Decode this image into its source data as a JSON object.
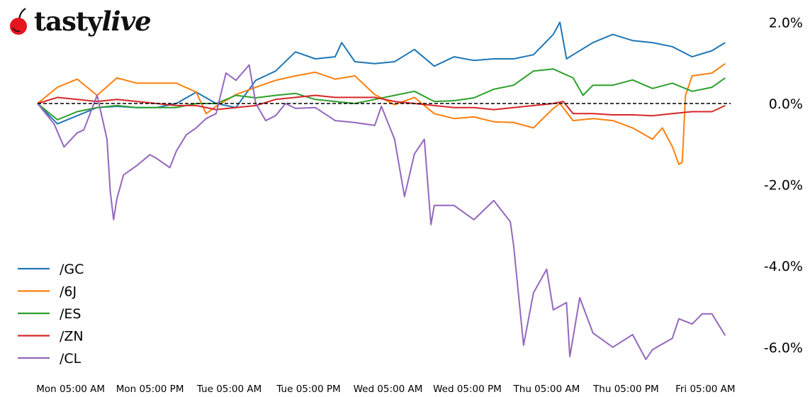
{
  "logo": {
    "text": "tastylive",
    "cherry_color": "#e4151f"
  },
  "chart_data": {
    "type": "line",
    "title": "",
    "xlabel": "",
    "ylabel": "",
    "y_unit": "%",
    "ylim": [
      -6.8,
      2.4
    ],
    "x_range": [
      "Mon 00:00",
      "Fri 08:00"
    ],
    "grid": false,
    "reference_line": {
      "value": 0.0,
      "style": "dashed",
      "color": "#000000"
    },
    "x_ticks": [
      "Mon 05:00 AM",
      "Mon 05:00 PM",
      "Tue 05:00 AM",
      "Tue 05:00 PM",
      "Wed 05:00 AM",
      "Wed 05:00 PM",
      "Thu 05:00 AM",
      "Thu 05:00 PM",
      "Fri 05:00 AM"
    ],
    "x_tick_times": [
      "Mon 05:00",
      "Mon 17:00",
      "Tue 05:00",
      "Tue 17:00",
      "Wed 05:00",
      "Wed 17:00",
      "Thu 05:00",
      "Thu 17:00",
      "Fri 05:00"
    ],
    "y_ticks": [
      {
        "value": 2,
        "label": "2.0%"
      },
      {
        "value": 0,
        "label": "0.0%"
      },
      {
        "value": -2,
        "label": "-2.0%"
      },
      {
        "value": -4,
        "label": "-4.0%"
      },
      {
        "value": -6,
        "label": "-6.0%"
      }
    ],
    "y_axis_side": "right",
    "legend_position": "bottom-left",
    "series": [
      {
        "name": "/GC",
        "color": "#1f77b4",
        "points": [
          [
            "Mon 00:00",
            0
          ],
          [
            "Mon 03:00",
            -0.5
          ],
          [
            "Mon 06:00",
            -0.3
          ],
          [
            "Mon 09:00",
            -0.1
          ],
          [
            "Mon 12:00",
            -0.07
          ],
          [
            "Mon 15:00",
            -0.1
          ],
          [
            "Mon 18:00",
            -0.1
          ],
          [
            "Mon 21:00",
            0
          ],
          [
            "Tue 00:00",
            0.28
          ],
          [
            "Tue 03:00",
            0
          ],
          [
            "Tue 06:00",
            -0.1
          ],
          [
            "Tue 09:00",
            0.57
          ],
          [
            "Tue 12:00",
            0.8
          ],
          [
            "Tue 15:00",
            1.27
          ],
          [
            "Tue 18:00",
            1.1
          ],
          [
            "Tue 21:00",
            1.15
          ],
          [
            "Tue 22:00",
            1.5
          ],
          [
            "Wed 00:00",
            1.03
          ],
          [
            "Wed 03:00",
            0.98
          ],
          [
            "Wed 06:00",
            1.03
          ],
          [
            "Wed 09:00",
            1.33
          ],
          [
            "Wed 12:00",
            0.92
          ],
          [
            "Wed 15:00",
            1.15
          ],
          [
            "Wed 18:00",
            1.06
          ],
          [
            "Wed 21:00",
            1.1
          ],
          [
            "Thu 00:00",
            1.1
          ],
          [
            "Thu 03:00",
            1.2
          ],
          [
            "Thu 06:00",
            1.7
          ],
          [
            "Thu 07:00",
            2.0
          ],
          [
            "Thu 08:00",
            1.1
          ],
          [
            "Thu 09:00",
            1.2
          ],
          [
            "Thu 12:00",
            1.5
          ],
          [
            "Thu 15:00",
            1.7
          ],
          [
            "Thu 18:00",
            1.55
          ],
          [
            "Thu 21:00",
            1.5
          ],
          [
            "Fri 00:00",
            1.4
          ],
          [
            "Fri 03:00",
            1.15
          ],
          [
            "Fri 06:00",
            1.3
          ],
          [
            "Fri 08:00",
            1.5
          ]
        ]
      },
      {
        "name": "/6J",
        "color": "#ff7f0e",
        "points": [
          [
            "Mon 00:00",
            0
          ],
          [
            "Mon 03:00",
            0.4
          ],
          [
            "Mon 06:00",
            0.6
          ],
          [
            "Mon 09:00",
            0.2
          ],
          [
            "Mon 12:00",
            0.63
          ],
          [
            "Mon 15:00",
            0.5
          ],
          [
            "Mon 18:00",
            0.5
          ],
          [
            "Mon 21:00",
            0.5
          ],
          [
            "Tue 00:00",
            0.28
          ],
          [
            "Tue 01:30",
            -0.25
          ],
          [
            "Tue 03:00",
            -0.07
          ],
          [
            "Tue 06:00",
            0.22
          ],
          [
            "Tue 09:00",
            0.4
          ],
          [
            "Tue 12:00",
            0.57
          ],
          [
            "Tue 15:00",
            0.68
          ],
          [
            "Tue 18:00",
            0.77
          ],
          [
            "Tue 21:00",
            0.6
          ],
          [
            "Wed 00:00",
            0.68
          ],
          [
            "Wed 03:00",
            0.22
          ],
          [
            "Wed 06:00",
            -0.03
          ],
          [
            "Wed 09:00",
            0.15
          ],
          [
            "Wed 12:00",
            -0.25
          ],
          [
            "Wed 15:00",
            -0.37
          ],
          [
            "Wed 18:00",
            -0.33
          ],
          [
            "Wed 21:00",
            -0.45
          ],
          [
            "Thu 00:00",
            -0.47
          ],
          [
            "Thu 03:00",
            -0.6
          ],
          [
            "Thu 06:00",
            -0.12
          ],
          [
            "Thu 07:00",
            0
          ],
          [
            "Thu 09:00",
            -0.42
          ],
          [
            "Thu 12:00",
            -0.37
          ],
          [
            "Thu 15:00",
            -0.42
          ],
          [
            "Thu 18:00",
            -0.6
          ],
          [
            "Thu 21:00",
            -0.88
          ],
          [
            "Thu 22:30",
            -0.6
          ],
          [
            "Fri 00:00",
            -1.06
          ],
          [
            "Fri 01:00",
            -1.5
          ],
          [
            "Fri 01:30",
            -1.45
          ],
          [
            "Fri 02:00",
            0.2
          ],
          [
            "Fri 03:00",
            0.68
          ],
          [
            "Fri 06:00",
            0.75
          ],
          [
            "Fri 08:00",
            0.98
          ]
        ]
      },
      {
        "name": "/ES",
        "color": "#2ca02c",
        "points": [
          [
            "Mon 00:00",
            0
          ],
          [
            "Mon 03:00",
            -0.4
          ],
          [
            "Mon 06:00",
            -0.2
          ],
          [
            "Mon 09:00",
            -0.1
          ],
          [
            "Mon 12:00",
            -0.05
          ],
          [
            "Mon 15:00",
            -0.1
          ],
          [
            "Mon 18:00",
            -0.1
          ],
          [
            "Mon 21:00",
            -0.1
          ],
          [
            "Tue 00:00",
            0
          ],
          [
            "Tue 03:00",
            0
          ],
          [
            "Tue 06:00",
            0.2
          ],
          [
            "Tue 09:00",
            0.14
          ],
          [
            "Tue 12:00",
            0.2
          ],
          [
            "Tue 15:00",
            0.25
          ],
          [
            "Tue 18:00",
            0.1
          ],
          [
            "Tue 21:00",
            0.05
          ],
          [
            "Wed 00:00",
            0
          ],
          [
            "Wed 03:00",
            0.1
          ],
          [
            "Wed 06:00",
            0.2
          ],
          [
            "Wed 09:00",
            0.3
          ],
          [
            "Wed 12:00",
            0.05
          ],
          [
            "Wed 15:00",
            0.07
          ],
          [
            "Wed 18:00",
            0.14
          ],
          [
            "Wed 21:00",
            0.35
          ],
          [
            "Thu 00:00",
            0.45
          ],
          [
            "Thu 03:00",
            0.8
          ],
          [
            "Thu 06:00",
            0.85
          ],
          [
            "Thu 09:00",
            0.63
          ],
          [
            "Thu 10:30",
            0.2
          ],
          [
            "Thu 12:00",
            0.45
          ],
          [
            "Thu 15:00",
            0.45
          ],
          [
            "Thu 18:00",
            0.58
          ],
          [
            "Thu 21:00",
            0.37
          ],
          [
            "Fri 00:00",
            0.5
          ],
          [
            "Fri 03:00",
            0.3
          ],
          [
            "Fri 06:00",
            0.4
          ],
          [
            "Fri 08:00",
            0.63
          ]
        ]
      },
      {
        "name": "/ZN",
        "color": "#d62728",
        "points": [
          [
            "Mon 00:00",
            0
          ],
          [
            "Mon 03:00",
            0.15
          ],
          [
            "Mon 06:00",
            0.1
          ],
          [
            "Mon 09:00",
            0.05
          ],
          [
            "Mon 12:00",
            0.1
          ],
          [
            "Mon 15:00",
            0.05
          ],
          [
            "Mon 18:00",
            0
          ],
          [
            "Mon 21:00",
            -0.05
          ],
          [
            "Tue 00:00",
            -0.05
          ],
          [
            "Tue 03:00",
            -0.15
          ],
          [
            "Tue 06:00",
            -0.1
          ],
          [
            "Tue 09:00",
            -0.05
          ],
          [
            "Tue 12:00",
            0.1
          ],
          [
            "Tue 15:00",
            0.15
          ],
          [
            "Tue 18:00",
            0.2
          ],
          [
            "Tue 21:00",
            0.15
          ],
          [
            "Wed 00:00",
            0.15
          ],
          [
            "Wed 03:00",
            0.15
          ],
          [
            "Wed 06:00",
            0.05
          ],
          [
            "Wed 09:00",
            0
          ],
          [
            "Wed 12:00",
            -0.05
          ],
          [
            "Wed 15:00",
            -0.1
          ],
          [
            "Wed 18:00",
            -0.1
          ],
          [
            "Wed 21:00",
            -0.15
          ],
          [
            "Thu 00:00",
            -0.1
          ],
          [
            "Thu 03:00",
            -0.05
          ],
          [
            "Thu 06:00",
            0
          ],
          [
            "Thu 07:30",
            0.05
          ],
          [
            "Thu 09:00",
            -0.25
          ],
          [
            "Thu 12:00",
            -0.25
          ],
          [
            "Thu 15:00",
            -0.28
          ],
          [
            "Thu 18:00",
            -0.28
          ],
          [
            "Thu 21:00",
            -0.3
          ],
          [
            "Fri 00:00",
            -0.25
          ],
          [
            "Fri 03:00",
            -0.2
          ],
          [
            "Fri 06:00",
            -0.2
          ],
          [
            "Fri 08:00",
            -0.05
          ]
        ]
      },
      {
        "name": "/CL",
        "color": "#9467bd",
        "points": [
          [
            "Mon 00:00",
            0
          ],
          [
            "Mon 02:30",
            -0.5
          ],
          [
            "Mon 04:00",
            -1.07
          ],
          [
            "Mon 06:00",
            -0.72
          ],
          [
            "Mon 07:00",
            -0.65
          ],
          [
            "Mon 09:00",
            0.2
          ],
          [
            "Mon 10:30",
            -0.88
          ],
          [
            "Mon 11:00",
            -2.17
          ],
          [
            "Mon 11:30",
            -2.86
          ],
          [
            "Mon 12:00",
            -2.34
          ],
          [
            "Mon 13:00",
            -1.76
          ],
          [
            "Mon 15:00",
            -1.53
          ],
          [
            "Mon 17:00",
            -1.26
          ],
          [
            "Mon 18:00",
            -1.35
          ],
          [
            "Mon 20:00",
            -1.58
          ],
          [
            "Mon 21:00",
            -1.17
          ],
          [
            "Mon 22:30",
            -0.77
          ],
          [
            "Tue 00:00",
            -0.6
          ],
          [
            "Tue 01:30",
            -0.37
          ],
          [
            "Tue 03:00",
            -0.25
          ],
          [
            "Tue 04:30",
            0.75
          ],
          [
            "Tue 06:00",
            0.57
          ],
          [
            "Tue 08:00",
            0.95
          ],
          [
            "Tue 09:00",
            0
          ],
          [
            "Tue 10:30",
            -0.42
          ],
          [
            "Tue 12:00",
            -0.3
          ],
          [
            "Tue 13:30",
            0
          ],
          [
            "Tue 15:00",
            -0.12
          ],
          [
            "Tue 18:00",
            -0.1
          ],
          [
            "Tue 21:00",
            -0.42
          ],
          [
            "Wed 00:00",
            -0.47
          ],
          [
            "Wed 03:00",
            -0.54
          ],
          [
            "Wed 04:00",
            -0.07
          ],
          [
            "Wed 06:00",
            -0.88
          ],
          [
            "Wed 07:30",
            -2.29
          ],
          [
            "Wed 09:00",
            -1.24
          ],
          [
            "Wed 10:30",
            -0.88
          ],
          [
            "Wed 11:30",
            -2.98
          ],
          [
            "Wed 12:00",
            -2.51
          ],
          [
            "Wed 15:00",
            -2.51
          ],
          [
            "Wed 18:00",
            -2.86
          ],
          [
            "Wed 21:00",
            -2.39
          ],
          [
            "Wed 23:30",
            -2.91
          ],
          [
            "Thu 00:00",
            -3.5
          ],
          [
            "Thu 01:30",
            -5.95
          ],
          [
            "Thu 03:00",
            -4.66
          ],
          [
            "Thu 05:00",
            -4.08
          ],
          [
            "Thu 06:00",
            -5.08
          ],
          [
            "Thu 08:00",
            -4.9
          ],
          [
            "Thu 08:30",
            -6.23
          ],
          [
            "Thu 10:00",
            -4.78
          ],
          [
            "Thu 12:00",
            -5.65
          ],
          [
            "Thu 15:00",
            -6.0
          ],
          [
            "Thu 18:00",
            -5.69
          ],
          [
            "Thu 20:00",
            -6.3
          ],
          [
            "Thu 21:00",
            -6.06
          ],
          [
            "Fri 00:00",
            -5.78
          ],
          [
            "Fri 01:00",
            -5.3
          ],
          [
            "Fri 03:00",
            -5.43
          ],
          [
            "Fri 04:30",
            -5.18
          ],
          [
            "Fri 06:00",
            -5.18
          ],
          [
            "Fri 08:00",
            -5.71
          ]
        ]
      }
    ]
  }
}
